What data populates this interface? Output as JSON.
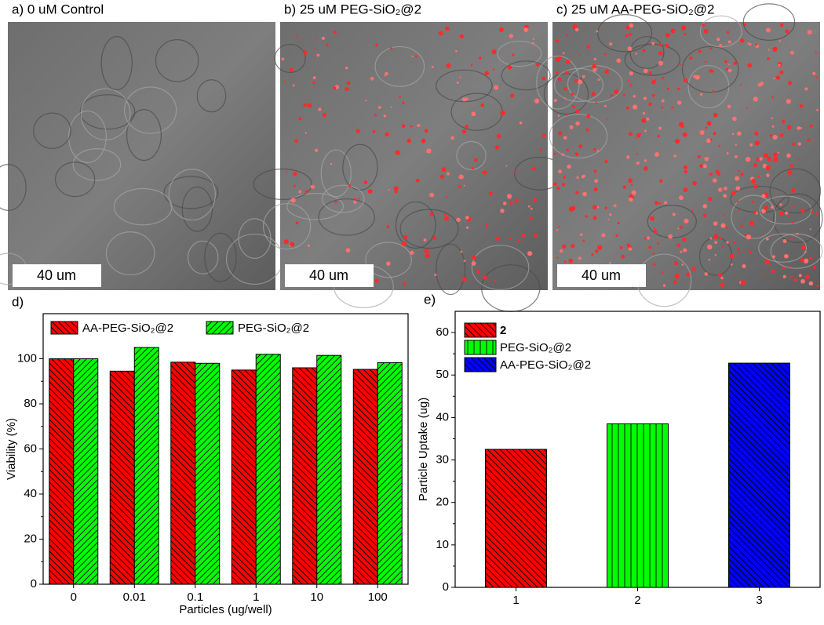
{
  "images": [
    {
      "label": "a)  0 uM Control",
      "scale_bar": "40 um"
    },
    {
      "label": "b)  25 uM PEG-SiO₂@2",
      "scale_bar": "40 um"
    },
    {
      "label": "c)  25 uM AA-PEG-SiO₂@2",
      "scale_bar": "40 um"
    }
  ],
  "chart_data": [
    {
      "type": "grouped_bar",
      "panel": "d)",
      "xlabel": "Particles (ug/well)",
      "ylabel": "Viability (%)",
      "categories": [
        "0",
        "0.01",
        "0.1",
        "1",
        "10",
        "100"
      ],
      "series": [
        {
          "name": "AA-PEG-SiO₂@2",
          "color": "#ff0000",
          "values": [
            100,
            94.5,
            98.5,
            95,
            96,
            95.3
          ]
        },
        {
          "name": "PEG-SiO₂@2",
          "color": "#00ff00",
          "values": [
            100,
            105,
            98,
            102,
            101.5,
            98.3
          ]
        }
      ],
      "ylim": [
        0,
        120
      ],
      "yticks": [
        0,
        20,
        40,
        60,
        80,
        100
      ],
      "legend": "top"
    },
    {
      "type": "bar",
      "panel": "e)",
      "ylabel": "Particle Uptake (ug)",
      "categories": [
        "1",
        "2",
        "3"
      ],
      "values": [
        32.5,
        38.5,
        52.8
      ],
      "colors": [
        "#ff0000",
        "#00ff00",
        "#0000ff"
      ],
      "legend": [
        "2",
        "PEG-SiO₂@2",
        "AA-PEG-SiO₂@2"
      ],
      "ylim": [
        0,
        65
      ],
      "yticks": [
        0,
        10,
        20,
        30,
        40,
        50,
        60
      ]
    }
  ]
}
